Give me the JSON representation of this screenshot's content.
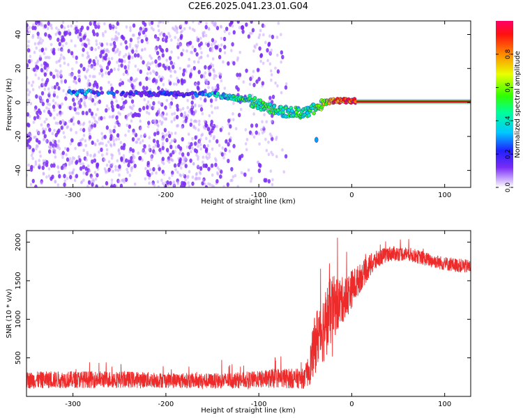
{
  "figure": {
    "title": "C2E6.2025.041.23.01.G04"
  },
  "colors": {
    "snr_line": "#ee2b2b",
    "spectrum_point": "#7a2cf5",
    "carrier_line": "#d01010"
  },
  "chart_data": [
    {
      "type": "heatmap",
      "title": "C2E6.2025.041.23.01.G04",
      "xlabel": "Height of straight line (km)",
      "ylabel": "Frequency (Hz)",
      "xlim": [
        -350,
        128
      ],
      "ylim": [
        -50,
        48
      ],
      "xticks": [
        -300,
        -200,
        -100,
        0,
        100
      ],
      "yticks": [
        -40,
        -20,
        0,
        20,
        40
      ],
      "colorbar": {
        "label": "Normalized spectral amplitude",
        "range": [
          0,
          1
        ],
        "ticks": [
          0.0,
          0.2,
          0.4,
          0.6,
          0.8
        ],
        "tick_labels": [
          "0.0",
          "0.2",
          "0.4",
          "0.6",
          "0.8"
        ],
        "colormap": [
          "#ffffff",
          "#a050ff",
          "#6020ff",
          "#0000ff",
          "#00c0ff",
          "#00ffa0",
          "#40ff00",
          "#ffff00",
          "#ff8000",
          "#ff0000",
          "#ff0060"
        ]
      },
      "noise_region_x": [
        -350,
        -70
      ],
      "ridge": {
        "x": [
          -300,
          -280,
          -250,
          -200,
          -170,
          -150,
          -130,
          -110,
          -90,
          -75,
          -60,
          -50,
          -42,
          -35,
          -28,
          -20,
          -10,
          0,
          20,
          60,
          128
        ],
        "frequency": [
          6,
          6,
          5,
          5,
          5,
          5,
          3,
          1,
          -3,
          -5,
          -6,
          -6,
          -4,
          -2,
          0,
          1,
          1,
          1,
          0.5,
          0.5,
          0.5
        ],
        "amplitude": [
          0.3,
          0.25,
          0.15,
          0.15,
          0.15,
          0.3,
          0.4,
          0.45,
          0.5,
          0.45,
          0.45,
          0.4,
          0.45,
          0.55,
          0.65,
          0.8,
          0.85,
          0.9,
          0.95,
          0.95,
          0.95
        ]
      },
      "isolated_blob": {
        "x": -38,
        "frequency": -22,
        "amplitude": 0.3
      },
      "grid": false
    },
    {
      "type": "line",
      "xlabel": "Height of straight line (km)",
      "ylabel": "SNR (10 * v/v)",
      "xlim": [
        -350,
        128
      ],
      "ylim": [
        0,
        2150
      ],
      "xticks": [
        -300,
        -200,
        -100,
        0,
        100
      ],
      "yticks": [
        500,
        1000,
        1500,
        2000
      ],
      "series": [
        {
          "x": [
            -350,
            -300,
            -250,
            -200,
            -150,
            -100,
            -80,
            -60,
            -50,
            -45,
            -40,
            -35,
            -30,
            -25,
            -20,
            -15,
            -10,
            -5,
            0,
            10,
            20,
            30,
            40,
            60,
            80,
            100,
            128
          ],
          "y": [
            210,
            220,
            220,
            210,
            200,
            220,
            240,
            230,
            230,
            400,
            650,
            850,
            900,
            1050,
            1150,
            1200,
            1250,
            1300,
            1400,
            1550,
            1700,
            1800,
            1850,
            1850,
            1780,
            1720,
            1680
          ],
          "noise_amplitude": [
            110,
            110,
            110,
            100,
            100,
            110,
            130,
            130,
            130,
            250,
            380,
            420,
            460,
            460,
            420,
            360,
            300,
            280,
            250,
            180,
            150,
            110,
            100,
            90,
            90,
            90,
            90
          ]
        }
      ],
      "grid": false
    }
  ]
}
